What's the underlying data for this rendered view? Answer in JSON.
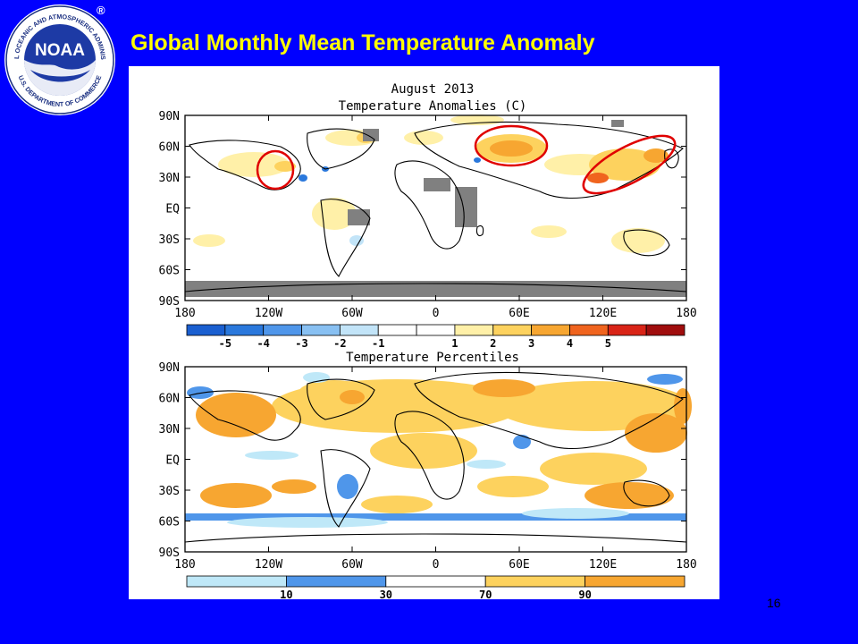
{
  "slide": {
    "title": "Global Monthly Mean Temperature Anomaly",
    "page_number": "16"
  },
  "logo": {
    "word": "NOAA",
    "ring_text": "NATIONAL OCEANIC AND ATMOSPHERIC ADMINISTRATION",
    "ring_text_bottom": "U.S. DEPARTMENT OF COMMERCE",
    "registered": "®"
  },
  "colors": {
    "background": "#0000ff",
    "title": "#ffff00",
    "annotation_circle": "#e00000",
    "land_missing": "#808080"
  },
  "top_map": {
    "title_line1": "August 2013",
    "title_line2": "Temperature Anomalies (C)",
    "lat_labels": [
      "90N",
      "60N",
      "30N",
      "EQ",
      "30S",
      "60S",
      "90S"
    ],
    "lon_labels": [
      "180",
      "120W",
      "60W",
      "0",
      "60E",
      "120E",
      "180"
    ],
    "colorbar": {
      "colors": [
        "#1a5fd0",
        "#2a78dc",
        "#4f96ea",
        "#88c0f2",
        "#c2e4f8",
        "#ffffff",
        "#ffffff",
        "#fff0a8",
        "#fdd25e",
        "#f7a631",
        "#f0641e",
        "#d92417",
        "#a00d0d"
      ],
      "labels": [
        "-5",
        "-4",
        "-3",
        "-2",
        "-1",
        "1",
        "2",
        "3",
        "4",
        "5"
      ]
    }
  },
  "bottom_map": {
    "title": "Temperature Percentiles",
    "lat_labels": [
      "90N",
      "60N",
      "30N",
      "EQ",
      "30S",
      "60S",
      "90S"
    ],
    "lon_labels": [
      "180",
      "120W",
      "60W",
      "0",
      "60E",
      "120E",
      "180"
    ],
    "colorbar": {
      "colors": [
        "#bfe8f8",
        "#4f96ea",
        "#ffffff",
        "#fdd25e",
        "#f7a631"
      ],
      "labels": [
        "10",
        "30",
        "70",
        "90"
      ]
    }
  }
}
